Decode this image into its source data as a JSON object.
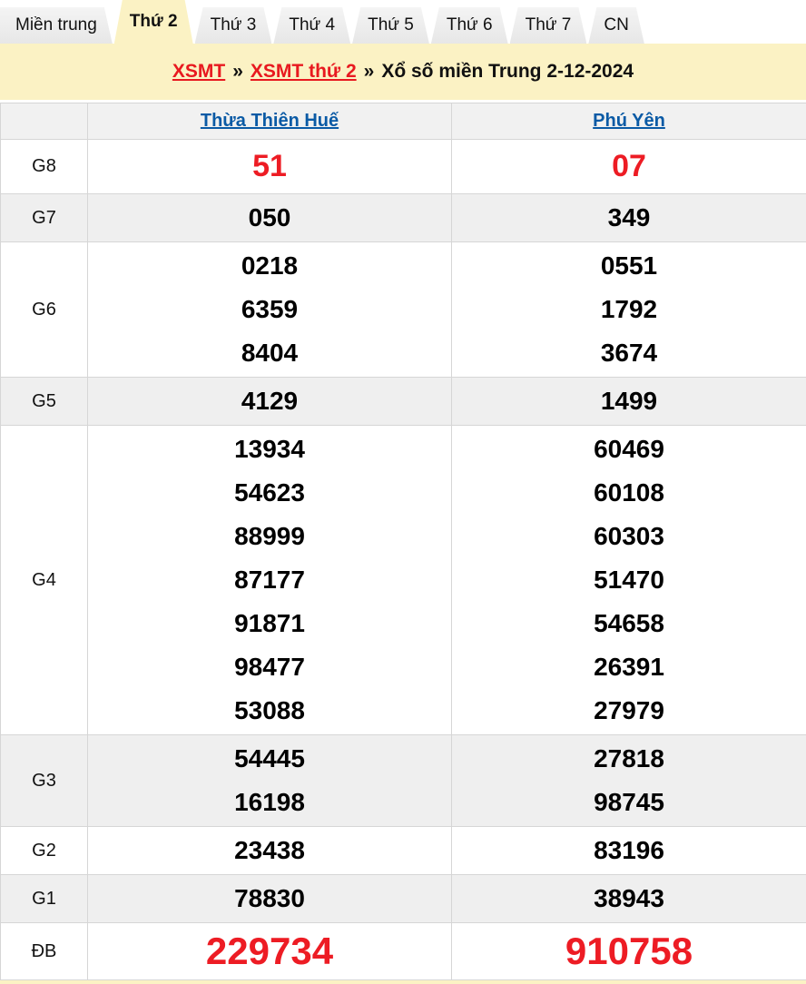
{
  "tabs": [
    {
      "label": "Miền trung",
      "active": false
    },
    {
      "label": "Thứ 2",
      "active": true
    },
    {
      "label": "Thứ 3",
      "active": false
    },
    {
      "label": "Thứ 4",
      "active": false
    },
    {
      "label": "Thứ 5",
      "active": false
    },
    {
      "label": "Thứ 6",
      "active": false
    },
    {
      "label": "Thứ 7",
      "active": false
    },
    {
      "label": "CN",
      "active": false
    }
  ],
  "breadcrumb": {
    "link1": "XSMT",
    "link2": "XSMT thứ 2",
    "separator": "»",
    "current": "Xổ số miền Trung 2-12-2024"
  },
  "table": {
    "columns": [
      "Thừa Thiên Huế",
      "Phú Yên"
    ],
    "rows": [
      {
        "label": "G8",
        "highlight": "red",
        "cells": [
          [
            "51"
          ],
          [
            "07"
          ]
        ]
      },
      {
        "label": "G7",
        "highlight": "",
        "cells": [
          [
            "050"
          ],
          [
            "349"
          ]
        ]
      },
      {
        "label": "G6",
        "highlight": "",
        "cells": [
          [
            "0218",
            "6359",
            "8404"
          ],
          [
            "0551",
            "1792",
            "3674"
          ]
        ]
      },
      {
        "label": "G5",
        "highlight": "",
        "cells": [
          [
            "4129"
          ],
          [
            "1499"
          ]
        ]
      },
      {
        "label": "G4",
        "highlight": "",
        "cells": [
          [
            "13934",
            "54623",
            "88999",
            "87177",
            "91871",
            "98477",
            "53088"
          ],
          [
            "60469",
            "60108",
            "60303",
            "51470",
            "54658",
            "26391",
            "27979"
          ]
        ]
      },
      {
        "label": "G3",
        "highlight": "",
        "cells": [
          [
            "54445",
            "16198"
          ],
          [
            "27818",
            "98745"
          ]
        ]
      },
      {
        "label": "G2",
        "highlight": "",
        "cells": [
          [
            "23438"
          ],
          [
            "83196"
          ]
        ]
      },
      {
        "label": "G1",
        "highlight": "",
        "cells": [
          [
            "78830"
          ],
          [
            "38943"
          ]
        ]
      },
      {
        "label": "ĐB",
        "highlight": "red-big",
        "cells": [
          [
            "229734"
          ],
          [
            "910758"
          ]
        ]
      }
    ]
  },
  "colors": {
    "accent_yellow": "#fbf2c4",
    "tab_gray": "#ececec",
    "link_blue": "#0a5aa5",
    "link_red": "#e8191f",
    "number_red": "#ed1c24",
    "row_stripe": "#efefef",
    "header_bg": "#f1f1f1",
    "border": "#d6d6d6"
  }
}
